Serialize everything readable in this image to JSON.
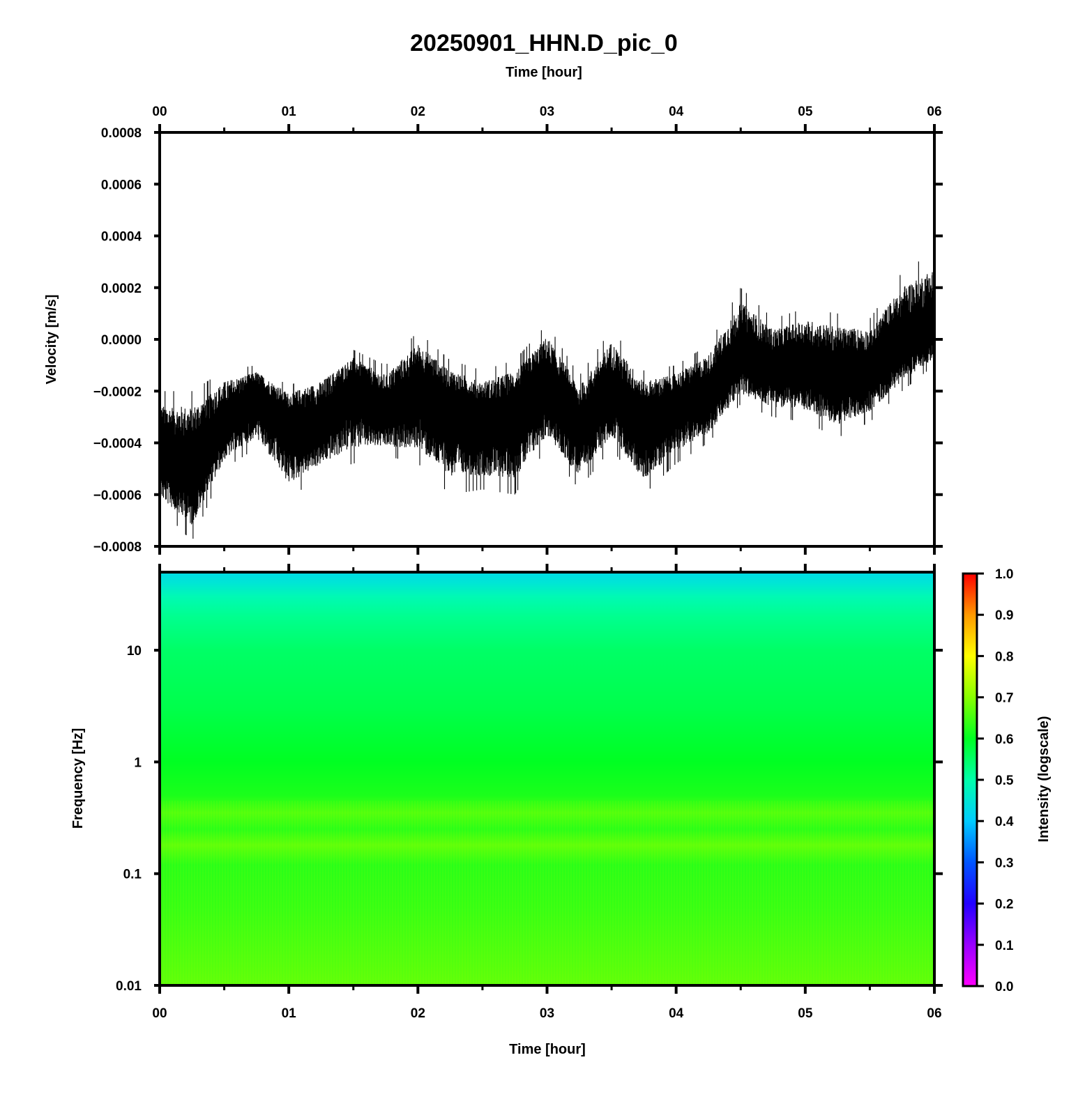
{
  "title": "20250901_HHN.D_pic_0",
  "chart_data": [
    {
      "type": "line",
      "panel": "waveform",
      "xlabel": "Time [hour]",
      "ylabel": "Velocity [m/s]",
      "x_ticks": [
        "00",
        "01",
        "02",
        "03",
        "04",
        "05",
        "06"
      ],
      "xlim": [
        0,
        6
      ],
      "ylim": [
        -0.0008,
        0.0008
      ],
      "y_ticks": [
        "0.0008",
        "0.0006",
        "0.0004",
        "0.0002",
        "0.0000",
        "−0.0002",
        "−0.0004",
        "−0.0006",
        "−0.0008"
      ],
      "y_tick_values": [
        0.0008,
        0.0006,
        0.0004,
        0.0002,
        0.0,
        -0.0002,
        -0.0004,
        -0.0006,
        -0.0008
      ],
      "series": [
        {
          "x": [
            0.0,
            0.25,
            0.5,
            0.75,
            1.0,
            1.25,
            1.5,
            1.75,
            2.0,
            2.25,
            2.5,
            2.75,
            3.0,
            3.25,
            3.5,
            3.75,
            4.0,
            4.25,
            4.5,
            4.75,
            5.0,
            5.25,
            5.5,
            5.75,
            6.0
          ],
          "mean": [
            -0.00045,
            -0.0005,
            -0.00033,
            -0.00022,
            -0.00032,
            -0.00033,
            -0.00018,
            -0.00028,
            -0.0002,
            -0.00026,
            -0.00033,
            -0.00029,
            -0.00018,
            -0.00034,
            -0.0002,
            -0.00033,
            -0.00025,
            -0.00022,
            -6e-05,
            -0.00012,
            -0.0001,
            -0.00015,
            -0.00012,
            -2e-05,
            3e-05
          ],
          "min": [
            -0.00065,
            -0.00078,
            -0.0005,
            -0.00042,
            -0.00062,
            -0.00052,
            -0.00048,
            -0.00045,
            -0.00048,
            -0.0006,
            -0.00058,
            -0.0006,
            -0.00042,
            -0.00058,
            -0.00042,
            -0.0006,
            -0.00048,
            -0.0004,
            -0.00025,
            -0.0003,
            -0.00032,
            -0.00038,
            -0.00032,
            -0.0002,
            -0.0001
          ],
          "max": [
            -0.0002,
            -0.0002,
            -0.00012,
            -0.0001,
            -0.00018,
            -0.00012,
            -4e-05,
            -0.0001,
            3e-05,
            -8e-05,
            -0.00012,
            -8e-05,
            6e-05,
            -0.00014,
            4e-05,
            -0.00012,
            -0.0001,
            -2e-05,
            0.0002,
            8e-05,
            0.00012,
            0.0001,
            8e-05,
            0.00026,
            0.00034
          ]
        }
      ]
    },
    {
      "type": "heatmap",
      "panel": "spectrogram",
      "xlabel": "Time [hour]",
      "ylabel": "Frequency [Hz]",
      "x_ticks": [
        "00",
        "01",
        "02",
        "03",
        "04",
        "05",
        "06"
      ],
      "xlim": [
        0,
        6
      ],
      "y_scale": "log",
      "ylim": [
        0.01,
        50
      ],
      "y_ticks": [
        "10",
        "1",
        "0.1",
        "0.01"
      ],
      "y_tick_values": [
        10,
        1,
        0.1,
        0.01
      ],
      "colorbar": {
        "label": "Intensity (logscale)",
        "range": [
          0.0,
          1.0
        ],
        "ticks": [
          "1.0",
          "0.9",
          "0.8",
          "0.7",
          "0.6",
          "0.5",
          "0.4",
          "0.3",
          "0.2",
          "0.1",
          "0.0"
        ],
        "tick_values": [
          1.0,
          0.9,
          0.8,
          0.7,
          0.6,
          0.5,
          0.4,
          0.3,
          0.2,
          0.1,
          0.0
        ]
      },
      "intensity_profile": {
        "frequency_hz": [
          50,
          40,
          30,
          20,
          10,
          3,
          1,
          0.5,
          0.35,
          0.25,
          0.18,
          0.12,
          0.05,
          0.01
        ],
        "intensity": [
          0.43,
          0.45,
          0.49,
          0.52,
          0.55,
          0.57,
          0.6,
          0.62,
          0.66,
          0.63,
          0.67,
          0.63,
          0.64,
          0.67
        ]
      }
    }
  ]
}
